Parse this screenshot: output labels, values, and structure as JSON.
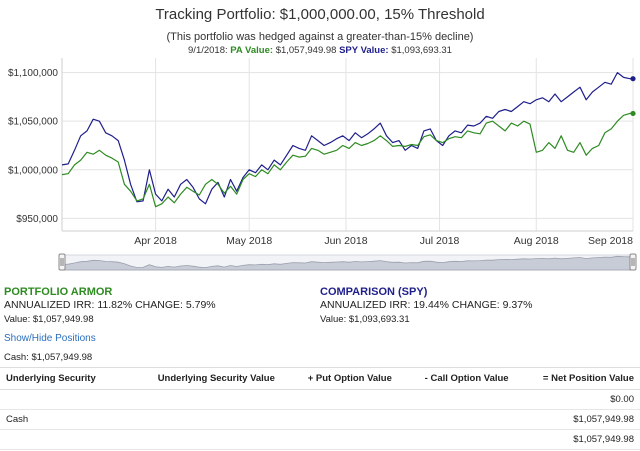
{
  "title": "Tracking Portfolio: $1,000,000.00, 15% Threshold",
  "subtitle": "(This portfolio was hedged against a greater-than-15% decline)",
  "tooltip": {
    "date": "9/1/2018:",
    "pa_label": "PA Value:",
    "pa_value": "$1,057,949.98",
    "spy_label": "SPY Value:",
    "spy_value": "$1,093,693.31"
  },
  "colors": {
    "pa": "#2e8b22",
    "spy": "#1f1f8c",
    "grid": "#e3e3e3",
    "navigator_fill": "#c8ccd6",
    "link": "#2a6ebd"
  },
  "chart_data": {
    "type": "line",
    "y_ticks": [
      "$950,000",
      "$1,000,000",
      "$1,050,000",
      "$1,100,000"
    ],
    "y_tick_values": [
      950000,
      1000000,
      1050000,
      1100000
    ],
    "ylim": [
      937000,
      1115000
    ],
    "x_ticks": [
      "Apr 2018",
      "May 2018",
      "Jun 2018",
      "Jul 2018",
      "Aug 2018",
      "Sep 2018"
    ],
    "x_tick_days": [
      30,
      60,
      91,
      121,
      152,
      183
    ],
    "xlim": [
      0,
      183
    ],
    "grid": true,
    "series": [
      {
        "name": "SPY",
        "color": "#1f1f8c",
        "x": [
          0,
          2,
          4,
          6,
          8,
          10,
          12,
          14,
          16,
          18,
          20,
          22,
          24,
          26,
          28,
          30,
          32,
          34,
          36,
          38,
          40,
          42,
          44,
          46,
          48,
          50,
          52,
          54,
          56,
          58,
          60,
          62,
          64,
          66,
          68,
          70,
          72,
          74,
          76,
          78,
          80,
          82,
          84,
          86,
          88,
          90,
          92,
          94,
          96,
          98,
          100,
          102,
          104,
          106,
          108,
          110,
          112,
          114,
          116,
          118,
          120,
          122,
          124,
          126,
          128,
          130,
          132,
          134,
          136,
          138,
          140,
          142,
          144,
          146,
          148,
          150,
          152,
          154,
          156,
          158,
          160,
          162,
          164,
          166,
          168,
          170,
          172,
          174,
          176,
          178,
          180,
          182,
          183
        ],
        "values": [
          1005000,
          1006000,
          1020000,
          1035000,
          1040000,
          1052000,
          1050000,
          1038000,
          1035000,
          1030000,
          1010000,
          985000,
          967000,
          968000,
          1000000,
          975000,
          968000,
          980000,
          972000,
          985000,
          990000,
          982000,
          970000,
          965000,
          980000,
          987000,
          972000,
          990000,
          978000,
          992000,
          1000000,
          997000,
          1005000,
          1000000,
          1010000,
          1005000,
          1015000,
          1025000,
          1022000,
          1020000,
          1035000,
          1030000,
          1025000,
          1028000,
          1032000,
          1035000,
          1030000,
          1038000,
          1033000,
          1037000,
          1042000,
          1048000,
          1035000,
          1028000,
          1030000,
          1020000,
          1025000,
          1022000,
          1040000,
          1042000,
          1030000,
          1025000,
          1035000,
          1040000,
          1038000,
          1046000,
          1045000,
          1048000,
          1055000,
          1053000,
          1060000,
          1062000,
          1060000,
          1065000,
          1070000,
          1068000,
          1072000,
          1074000,
          1070000,
          1078000,
          1070000,
          1075000,
          1080000,
          1085000,
          1072000,
          1080000,
          1085000,
          1090000,
          1088000,
          1100000,
          1095000,
          1093693,
          1093693
        ]
      },
      {
        "name": "PA",
        "color": "#2e8b22",
        "x": [
          0,
          2,
          4,
          6,
          8,
          10,
          12,
          14,
          16,
          18,
          20,
          22,
          24,
          26,
          28,
          30,
          32,
          34,
          36,
          38,
          40,
          42,
          44,
          46,
          48,
          50,
          52,
          54,
          56,
          58,
          60,
          62,
          64,
          66,
          68,
          70,
          72,
          74,
          76,
          78,
          80,
          82,
          84,
          86,
          88,
          90,
          92,
          94,
          96,
          98,
          100,
          102,
          104,
          106,
          108,
          110,
          112,
          114,
          116,
          118,
          120,
          122,
          124,
          126,
          128,
          130,
          132,
          134,
          136,
          138,
          140,
          142,
          144,
          146,
          148,
          150,
          152,
          154,
          156,
          158,
          160,
          162,
          164,
          166,
          168,
          170,
          172,
          174,
          176,
          178,
          180,
          182,
          183
        ],
        "values": [
          995000,
          996000,
          1005000,
          1010000,
          1018000,
          1016000,
          1020000,
          1015000,
          1012000,
          1008000,
          985000,
          978000,
          968000,
          970000,
          985000,
          962000,
          965000,
          972000,
          966000,
          975000,
          982000,
          978000,
          974000,
          985000,
          990000,
          985000,
          976000,
          983000,
          975000,
          990000,
          996000,
          993000,
          1000000,
          996000,
          1005000,
          1000000,
          1008000,
          1015000,
          1013000,
          1014000,
          1022000,
          1020000,
          1016000,
          1018000,
          1020000,
          1025000,
          1022000,
          1028000,
          1025000,
          1027000,
          1030000,
          1035000,
          1030000,
          1024000,
          1025000,
          1024000,
          1026000,
          1025000,
          1034000,
          1036000,
          1030000,
          1028000,
          1032000,
          1034000,
          1033000,
          1040000,
          1038000,
          1037000,
          1048000,
          1050000,
          1045000,
          1040000,
          1048000,
          1045000,
          1050000,
          1047000,
          1018000,
          1020000,
          1028000,
          1022000,
          1035000,
          1020000,
          1018000,
          1028000,
          1015000,
          1022000,
          1025000,
          1038000,
          1042000,
          1050000,
          1056000,
          1057950,
          1057950
        ]
      }
    ]
  },
  "portfolio_armor": {
    "label": "PORTFOLIO ARMOR",
    "irr_label": "ANNUALIZED IRR: 11.82% CHANGE: 5.79%",
    "value_label": "Value: $1,057,949.98"
  },
  "comparison": {
    "label": "COMPARISON (SPY)",
    "irr_label": "ANNUALIZED IRR: 19.44% CHANGE: 9.37%",
    "value_label": "Value: $1,093,693.31"
  },
  "show_hide_label": "Show/Hide Positions",
  "cash_label": "Cash: $1,057,949.98",
  "table": {
    "headers": [
      "Underlying Security",
      "Underlying Security Value",
      "+ Put Option Value",
      "- Call Option Value",
      "= Net Position Value"
    ],
    "rows": [
      [
        "",
        "",
        "",
        "",
        "$0.00"
      ],
      [
        "Cash",
        "",
        "",
        "",
        "$1,057,949.98"
      ],
      [
        "",
        "",
        "",
        "",
        "$1,057,949.98"
      ]
    ]
  }
}
